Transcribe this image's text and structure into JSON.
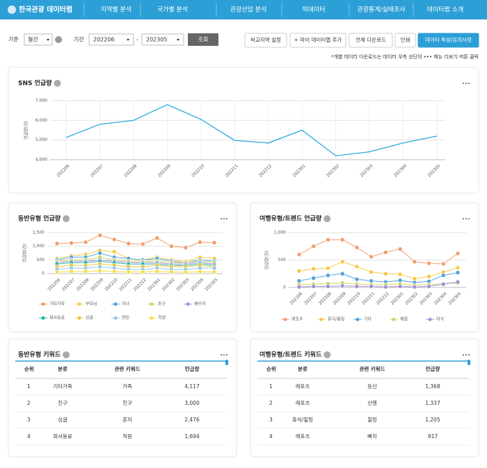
{
  "nav": {
    "logo": "한국관광 데이터랩",
    "items": [
      "지역별 분석",
      "국가별 분석",
      "관광산업 분석",
      "빅데이터",
      "관광통계/실태조사",
      "데이터랩 소개"
    ]
  },
  "filters": {
    "basis_label": "기준",
    "basis": "월간",
    "period_label": "기간",
    "start": "202206",
    "separator": "-",
    "end": "202305",
    "search": "조회"
  },
  "actions": [
    "비교지역 설정",
    "+ 마이 데이터랩 추가",
    "전체 다운로드",
    "인쇄",
    "데이터 특성/유의사항"
  ],
  "note": "*개별 데이터 다운로드는 데이터 우측 상단의 ••• 메뉴 더보기 버튼 클릭",
  "chart_data": [
    {
      "type": "line",
      "title": "SNS 언급량",
      "y_label": "언급량(건)",
      "grid": true,
      "categories": [
        "202206",
        "202207",
        "202208",
        "202209",
        "202210",
        "202211",
        "202212",
        "202301",
        "202302",
        "202303",
        "202304",
        "202305"
      ],
      "series": [
        {
          "name": null,
          "color": "#29a9e0",
          "values": [
            5130,
            5800,
            6000,
            6800,
            6050,
            4980,
            4850,
            5500,
            4200,
            4400,
            4850,
            5200
          ]
        }
      ],
      "ylim": [
        4000,
        7000
      ],
      "yticks": [
        {
          "value": 4000,
          "label": "4,000"
        },
        {
          "value": 5000,
          "label": "5,000"
        },
        {
          "value": 6000,
          "label": "6,000"
        },
        {
          "value": 7000,
          "label": "7,000"
        }
      ]
    },
    {
      "type": "line",
      "title": "동반유형 언급량",
      "y_label": "언급량(건)",
      "grid": true,
      "categories": [
        "202206",
        "202207",
        "202208",
        "202209",
        "202210",
        "202211",
        "202212",
        "202301",
        "202302",
        "202303",
        "202304",
        "202305"
      ],
      "series": [
        {
          "name": "기타가족",
          "color": "#f29c6b",
          "values": [
            1100,
            1120,
            1150,
            1400,
            1250,
            1100,
            1080,
            1300,
            1000,
            950,
            1150,
            1130
          ]
        },
        {
          "name": "부모님",
          "color": "#f7c948",
          "values": [
            550,
            650,
            700,
            850,
            800,
            550,
            500,
            600,
            500,
            450,
            600,
            550
          ]
        },
        {
          "name": "자녀",
          "color": "#4fa3d9",
          "values": [
            500,
            600,
            600,
            750,
            600,
            550,
            500,
            550,
            450,
            400,
            500,
            450
          ]
        },
        {
          "name": "친구",
          "color": "#c8d85a",
          "values": [
            450,
            500,
            500,
            600,
            500,
            450,
            450,
            450,
            400,
            400,
            450,
            400
          ]
        },
        {
          "name": "배우자",
          "color": "#a58fd6",
          "values": [
            400,
            450,
            450,
            500,
            450,
            400,
            400,
            400,
            350,
            350,
            400,
            350
          ]
        },
        {
          "name": "회사동료",
          "color": "#2bb3a4",
          "values": [
            350,
            400,
            400,
            450,
            400,
            350,
            350,
            350,
            300,
            300,
            350,
            300
          ]
        },
        {
          "name": "싱글",
          "color": "#e8c53a",
          "values": [
            250,
            300,
            300,
            350,
            300,
            250,
            250,
            300,
            250,
            250,
            300,
            250
          ]
        },
        {
          "name": "연인",
          "color": "#8fc7e8",
          "values": [
            150,
            200,
            200,
            250,
            200,
            150,
            150,
            200,
            150,
            150,
            200,
            200
          ]
        },
        {
          "name": "학생",
          "color": "#f5e04a",
          "values": [
            50,
            80,
            80,
            100,
            80,
            60,
            60,
            80,
            60,
            50,
            70,
            60
          ]
        }
      ],
      "ylim": [
        0,
        1500
      ],
      "yticks": [
        0,
        500,
        {
          "value": 1000,
          "label": "1,000"
        },
        {
          "value": 1500,
          "label": "1,500"
        }
      ]
    },
    {
      "type": "line",
      "title": "여행유형/트렌드 언급량",
      "y_label": "언급량(건)",
      "grid": true,
      "categories": [
        "202206",
        "202207",
        "202208",
        "202209",
        "202210",
        "202211",
        "202212",
        "202301",
        "202302",
        "202303",
        "202304",
        "202305"
      ],
      "series": [
        {
          "name": "레포츠",
          "color": "#f29c6b",
          "values": [
            600,
            750,
            870,
            870,
            730,
            560,
            640,
            700,
            470,
            440,
            430,
            620
          ]
        },
        {
          "name": "휴식/힐링",
          "color": "#f7c948",
          "values": [
            300,
            340,
            350,
            470,
            380,
            280,
            250,
            240,
            160,
            200,
            280,
            360
          ]
        },
        {
          "name": "기타",
          "color": "#4fa3d9",
          "values": [
            120,
            170,
            220,
            250,
            150,
            120,
            100,
            130,
            90,
            110,
            220,
            270
          ]
        },
        {
          "name": "체험",
          "color": "#c8d85a",
          "values": [
            50,
            60,
            70,
            80,
            60,
            50,
            50,
            60,
            40,
            50,
            70,
            80
          ]
        },
        {
          "name": "미식",
          "color": "#a58fd6",
          "values": [
            10,
            20,
            20,
            30,
            20,
            20,
            10,
            20,
            10,
            20,
            60,
            100
          ]
        }
      ],
      "ylim": [
        0,
        1000
      ],
      "yticks": [
        0,
        500,
        {
          "value": 1000,
          "label": "1,000"
        }
      ]
    }
  ],
  "tables": [
    {
      "title": "동반유형 키워드",
      "columns": [
        "순위",
        "분류",
        "관련 키워드",
        "언급량"
      ],
      "rows": [
        [
          "1",
          "기타가족",
          "가족",
          "4,117"
        ],
        [
          "2",
          "친구",
          "친구",
          "3,000"
        ],
        [
          "3",
          "싱글",
          "혼자",
          "2,476"
        ],
        [
          "4",
          "회사동료",
          "직원",
          "1,694"
        ]
      ]
    },
    {
      "title": "여행유형/트렌드 키워드",
      "columns": [
        "순위",
        "분류",
        "관련 키워드",
        "언급량"
      ],
      "rows": [
        [
          "1",
          "레포츠",
          "등산",
          "1,368"
        ],
        [
          "2",
          "레포츠",
          "산행",
          "1,337"
        ],
        [
          "3",
          "휴식/힐링",
          "힐링",
          "1,205"
        ],
        [
          "4",
          "레포츠",
          "빠지",
          "917"
        ]
      ]
    }
  ]
}
